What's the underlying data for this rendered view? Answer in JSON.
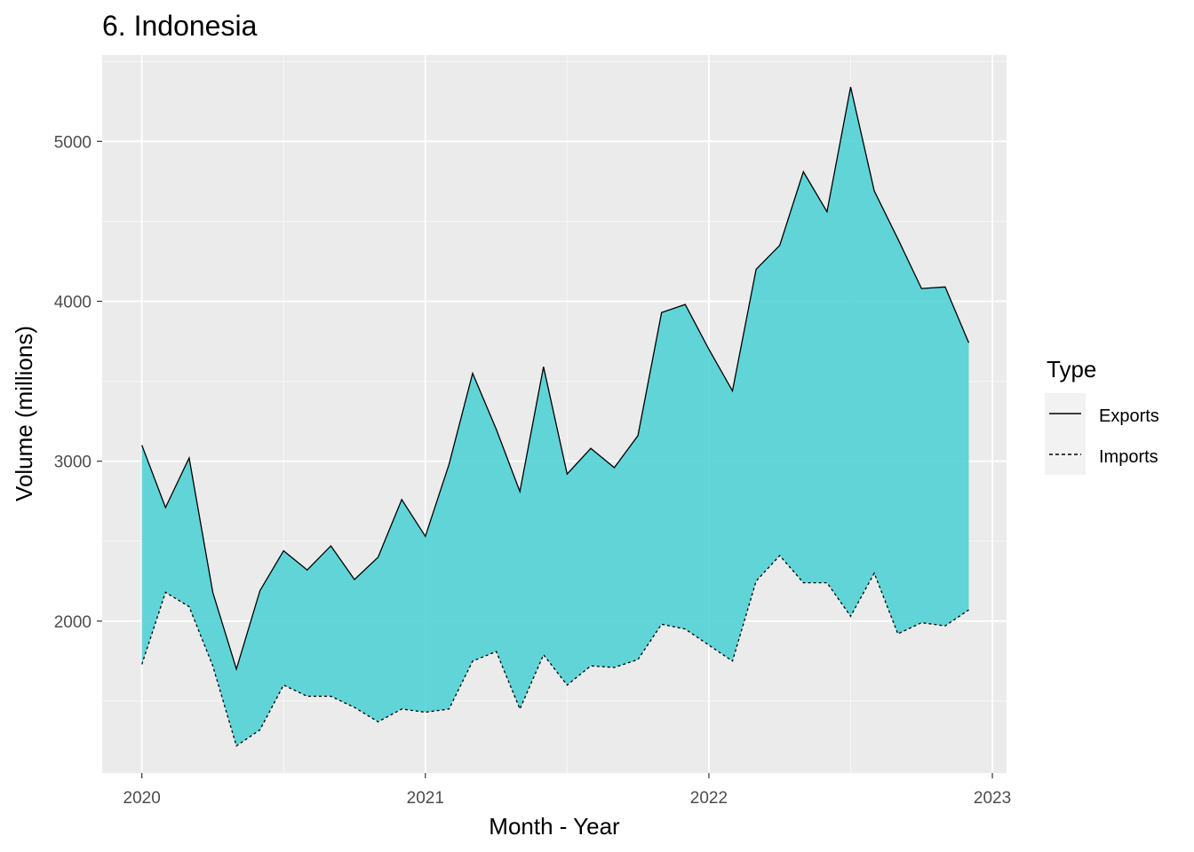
{
  "chart_data": {
    "type": "area",
    "title": "6. Indonesia",
    "xlabel": "Month - Year",
    "ylabel": "Volume (millions)",
    "x_ticks": [
      "2020",
      "2021",
      "2022",
      "2023"
    ],
    "y_ticks": [
      "2000",
      "3000",
      "4000",
      "5000"
    ],
    "xlim": [
      2019.86,
      2023.05
    ],
    "ylim": [
      1050,
      5540
    ],
    "grid": true,
    "legend_position": "right",
    "legend_title": "Type",
    "fill_color": "#4dd0d4",
    "months": [
      "2020-01",
      "2020-02",
      "2020-03",
      "2020-04",
      "2020-05",
      "2020-06",
      "2020-07",
      "2020-08",
      "2020-09",
      "2020-10",
      "2020-11",
      "2020-12",
      "2021-01",
      "2021-02",
      "2021-03",
      "2021-04",
      "2021-05",
      "2021-06",
      "2021-07",
      "2021-08",
      "2021-09",
      "2021-10",
      "2021-11",
      "2021-12",
      "2022-01",
      "2022-02",
      "2022-03",
      "2022-04",
      "2022-05",
      "2022-06",
      "2022-07",
      "2022-08",
      "2022-09",
      "2022-10",
      "2022-11",
      "2022-12"
    ],
    "series": [
      {
        "name": "Exports",
        "linetype": "solid",
        "values": [
          3100,
          2710,
          3020,
          2180,
          1700,
          2190,
          2440,
          2320,
          2470,
          2260,
          2400,
          2760,
          2530,
          2980,
          3550,
          3200,
          2810,
          3590,
          2920,
          3080,
          2960,
          3160,
          3930,
          3980,
          3700,
          3440,
          4200,
          4350,
          4810,
          4560,
          5340,
          4690,
          4390,
          4080,
          4090,
          3740
        ]
      },
      {
        "name": "Imports",
        "linetype": "dashed",
        "values": [
          1730,
          2180,
          2090,
          1720,
          1220,
          1320,
          1600,
          1530,
          1530,
          1460,
          1370,
          1450,
          1430,
          1450,
          1750,
          1810,
          1450,
          1790,
          1600,
          1720,
          1710,
          1760,
          1980,
          1950,
          1850,
          1750,
          2250,
          2410,
          2240,
          2240,
          2030,
          2300,
          1920,
          1990,
          1970,
          2070
        ]
      }
    ]
  }
}
